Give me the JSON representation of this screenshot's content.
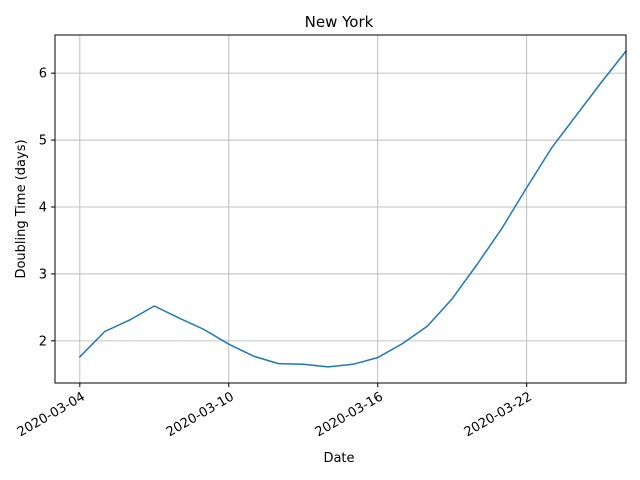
{
  "chart_data": {
    "type": "line",
    "title": "New York",
    "xlabel": "Date",
    "ylabel": "Doubling Time (days)",
    "x_tick_labels": [
      "2020-03-04",
      "2020-03-10",
      "2020-03-16",
      "2020-03-22"
    ],
    "x_ticks": [
      "2020-03-04",
      "2020-03-10",
      "2020-03-16",
      "2020-03-22"
    ],
    "y_tick_labels": [
      "2",
      "3",
      "4",
      "5",
      "6"
    ],
    "y_ticks": [
      2,
      3,
      4,
      5,
      6
    ],
    "xlim": [
      "2020-03-03",
      "2020-03-26"
    ],
    "ylim": [
      1.37,
      6.57
    ],
    "grid": true,
    "legend": false,
    "series": [
      {
        "color": "#1f77b4",
        "x": [
          "2020-03-04",
          "2020-03-05",
          "2020-03-06",
          "2020-03-07",
          "2020-03-08",
          "2020-03-09",
          "2020-03-10",
          "2020-03-11",
          "2020-03-12",
          "2020-03-13",
          "2020-03-14",
          "2020-03-15",
          "2020-03-16",
          "2020-03-17",
          "2020-03-18",
          "2020-03-19",
          "2020-03-20",
          "2020-03-21",
          "2020-03-22",
          "2020-03-23",
          "2020-03-24",
          "2020-03-25",
          "2020-03-26"
        ],
        "y": [
          1.76,
          2.14,
          2.31,
          2.52,
          2.34,
          2.17,
          1.95,
          1.77,
          1.66,
          1.65,
          1.61,
          1.65,
          1.75,
          1.96,
          2.22,
          2.63,
          3.14,
          3.68,
          4.29,
          4.88,
          5.37,
          5.86,
          6.33
        ]
      }
    ]
  }
}
